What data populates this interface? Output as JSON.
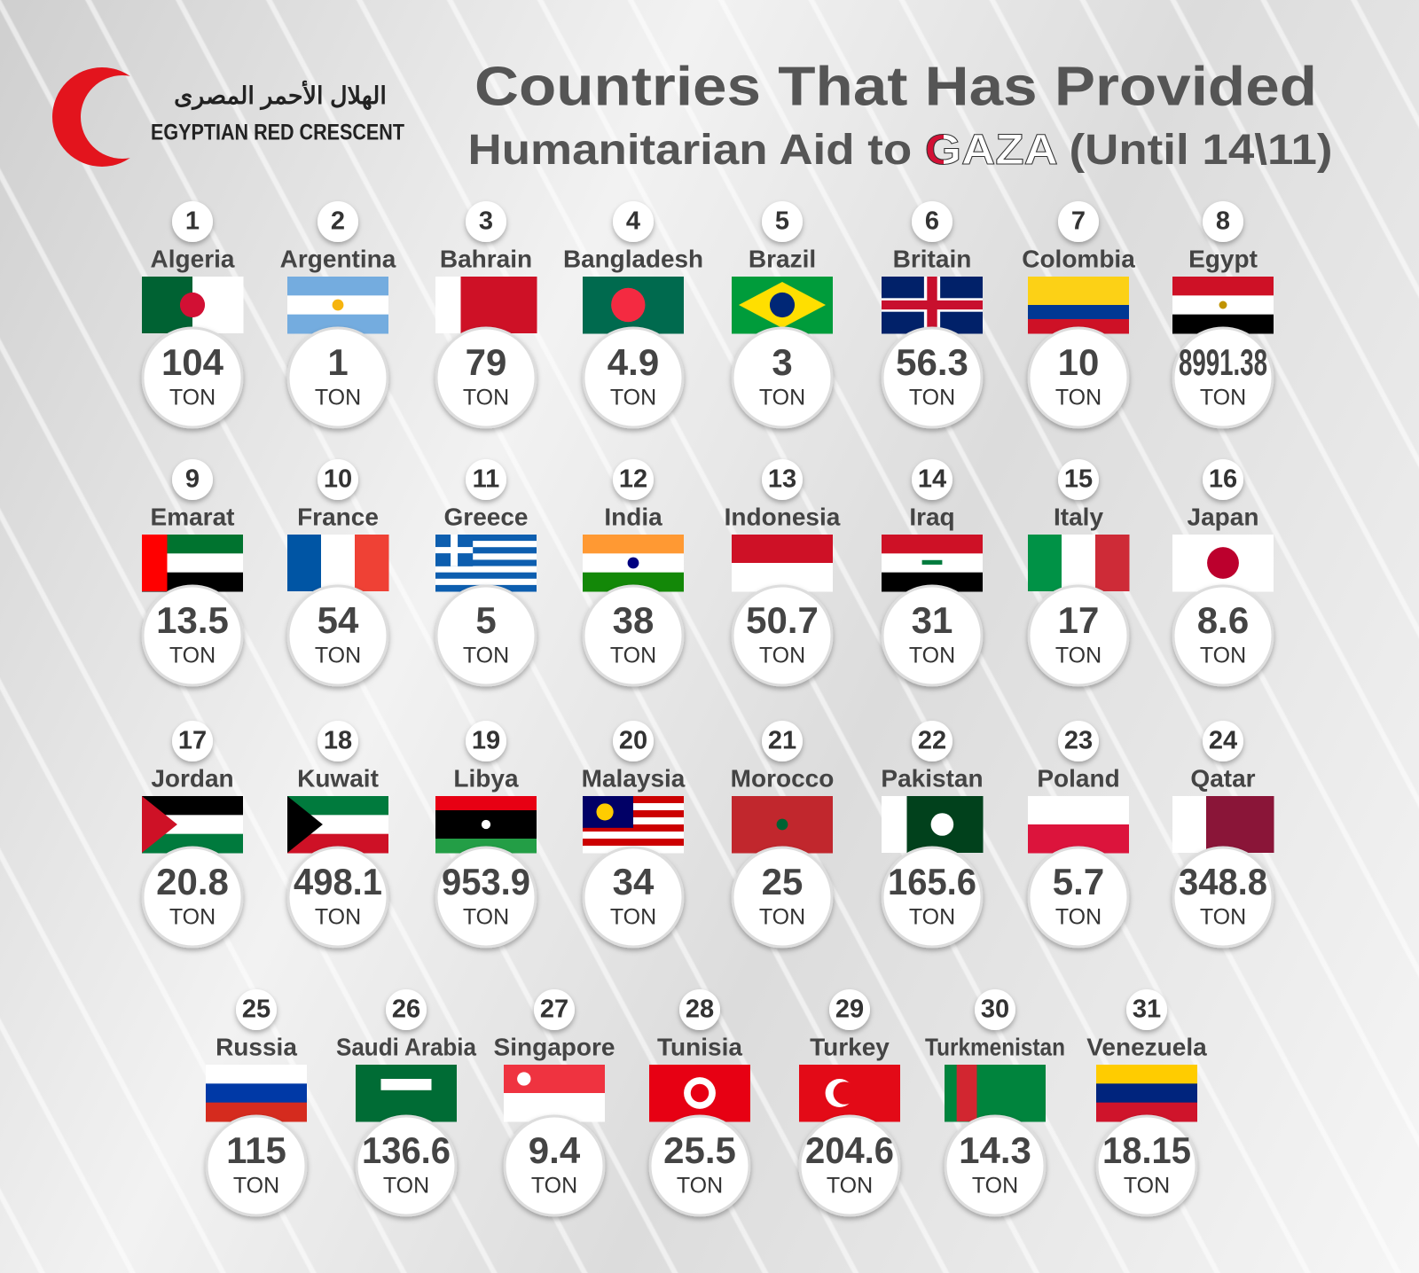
{
  "logo": {
    "arabic": "الهلال الأحمر المصرى",
    "english": "EGYPTIAN RED CRESCENT"
  },
  "title": {
    "line1": "Countries That Has Provided",
    "line2_prefix": "Humanitarian Aid to ",
    "line2_highlight": "GAZA",
    "line2_suffix": " (Until 14\\11)"
  },
  "countries": [
    {
      "rank": "1",
      "name": "Algeria",
      "amount": "104",
      "unit": "TON"
    },
    {
      "rank": "2",
      "name": "Argentina",
      "amount": "1",
      "unit": "TON"
    },
    {
      "rank": "3",
      "name": "Bahrain",
      "amount": "79",
      "unit": "TON"
    },
    {
      "rank": "4",
      "name": "Bangladesh",
      "amount": "4.9",
      "unit": "TON"
    },
    {
      "rank": "5",
      "name": "Brazil",
      "amount": "3",
      "unit": "TON"
    },
    {
      "rank": "6",
      "name": "Britain",
      "amount": "56.3",
      "unit": "TON"
    },
    {
      "rank": "7",
      "name": "Colombia",
      "amount": "10",
      "unit": "TON"
    },
    {
      "rank": "8",
      "name": "Egypt",
      "amount": "8991.38",
      "unit": "TON"
    },
    {
      "rank": "9",
      "name": "Emarat",
      "amount": "13.5",
      "unit": "TON"
    },
    {
      "rank": "10",
      "name": "France",
      "amount": "54",
      "unit": "TON"
    },
    {
      "rank": "11",
      "name": "Greece",
      "amount": "5",
      "unit": "TON"
    },
    {
      "rank": "12",
      "name": "India",
      "amount": "38",
      "unit": "TON"
    },
    {
      "rank": "13",
      "name": "Indonesia",
      "amount": "50.7",
      "unit": "TON"
    },
    {
      "rank": "14",
      "name": "Iraq",
      "amount": "31",
      "unit": "TON"
    },
    {
      "rank": "15",
      "name": "Italy",
      "amount": "17",
      "unit": "TON"
    },
    {
      "rank": "16",
      "name": "Japan",
      "amount": "8.6",
      "unit": "TON"
    },
    {
      "rank": "17",
      "name": "Jordan",
      "amount": "20.8",
      "unit": "TON"
    },
    {
      "rank": "18",
      "name": "Kuwait",
      "amount": "498.1",
      "unit": "TON"
    },
    {
      "rank": "19",
      "name": "Libya",
      "amount": "953.9",
      "unit": "TON"
    },
    {
      "rank": "20",
      "name": "Malaysia",
      "amount": "34",
      "unit": "TON"
    },
    {
      "rank": "21",
      "name": "Morocco",
      "amount": "25",
      "unit": "TON"
    },
    {
      "rank": "22",
      "name": "Pakistan",
      "amount": "165.6",
      "unit": "TON"
    },
    {
      "rank": "23",
      "name": "Poland",
      "amount": "5.7",
      "unit": "TON"
    },
    {
      "rank": "24",
      "name": "Qatar",
      "amount": "348.8",
      "unit": "TON"
    },
    {
      "rank": "25",
      "name": "Russia",
      "amount": "115",
      "unit": "TON"
    },
    {
      "rank": "26",
      "name": "Saudi Arabia",
      "amount": "136.6",
      "unit": "TON"
    },
    {
      "rank": "27",
      "name": "Singapore",
      "amount": "9.4",
      "unit": "TON"
    },
    {
      "rank": "28",
      "name": "Tunisia",
      "amount": "25.5",
      "unit": "TON"
    },
    {
      "rank": "29",
      "name": "Turkey",
      "amount": "204.6",
      "unit": "TON"
    },
    {
      "rank": "30",
      "name": "Turkmenistan",
      "amount": "14.3",
      "unit": "TON"
    },
    {
      "rank": "31",
      "name": "Venezuela",
      "amount": "18.15",
      "unit": "TON"
    }
  ]
}
